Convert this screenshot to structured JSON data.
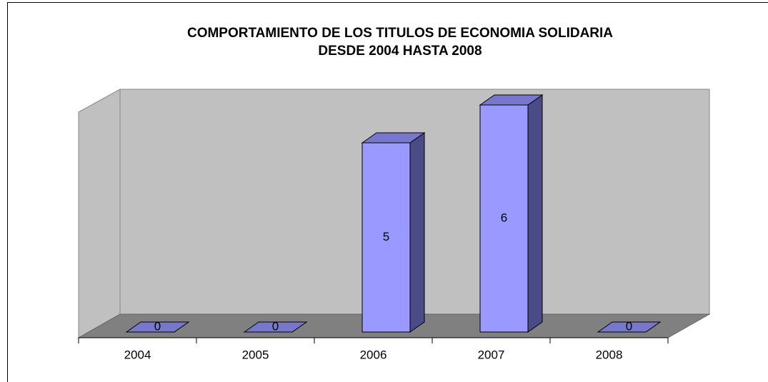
{
  "chart_data": {
    "type": "bar3d",
    "title": "COMPORTAMIENTO DE LOS TITULOS DE ECONOMIA SOLIDARIA\nDESDE 2004 HASTA 2008",
    "categories": [
      "2004",
      "2005",
      "2006",
      "2007",
      "2008"
    ],
    "values": [
      0,
      0,
      5,
      6,
      0
    ],
    "color": "#9999ff",
    "ylim": [
      0,
      6
    ]
  }
}
